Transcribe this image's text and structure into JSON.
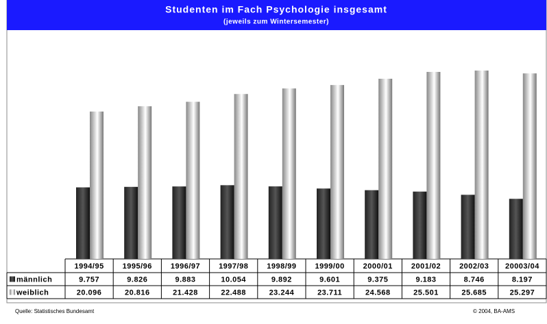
{
  "chart_data": {
    "type": "bar",
    "title": "Studenten im Fach Psychologie insgesamt",
    "subtitle": "(jeweils zum Wintersemester)",
    "categories": [
      "1994/95",
      "1995/96",
      "1996/97",
      "1997/98",
      "1998/99",
      "1999/00",
      "2000/01",
      "2001/02",
      "2002/03",
      "20003/04"
    ],
    "series": [
      {
        "name": "männlich",
        "color": "#555555",
        "values": [
          9757,
          9826,
          9883,
          10054,
          9892,
          9601,
          9375,
          9183,
          8746,
          8197
        ],
        "value_labels": [
          "9.757",
          "9.826",
          "9.883",
          "10.054",
          "9.892",
          "9.601",
          "9.375",
          "9.183",
          "8.746",
          "8.197"
        ]
      },
      {
        "name": "weiblich",
        "color": "#cccccc",
        "values": [
          20096,
          20816,
          21428,
          22488,
          23244,
          23711,
          24568,
          25501,
          25685,
          25297
        ],
        "value_labels": [
          "20.096",
          "20.816",
          "21.428",
          "22.488",
          "23.244",
          "23.711",
          "24.568",
          "25.501",
          "25.685",
          "25.297"
        ]
      }
    ],
    "source": "Quelle: Statistisches Bundesamt",
    "credit": "© 2004, BA-AMS"
  }
}
